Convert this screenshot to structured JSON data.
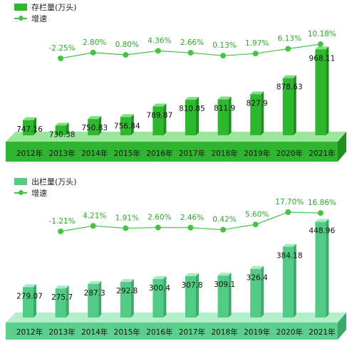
{
  "chart_data": [
    {
      "type": "bar",
      "legend": {
        "bar_label": "存栏量(万头)",
        "line_label": "增速"
      },
      "categories": [
        "2012年",
        "2013年",
        "2014年",
        "2015年",
        "2016年",
        "2017年",
        "2018年",
        "2019年",
        "2020年",
        "2021年"
      ],
      "series": [
        {
          "name": "存栏量(万头)",
          "values": [
            747.16,
            730.38,
            750.83,
            756.84,
            789.87,
            810.85,
            811.9,
            827.9,
            878.63,
            968.11
          ],
          "labels": [
            "747.16",
            "730.38",
            "750.83",
            "756.84",
            "789.87",
            "810.85",
            "811.9",
            "827.9",
            "878.63",
            "968.11"
          ]
        },
        {
          "name": "增速",
          "values": [
            null,
            -2.25,
            2.8,
            0.8,
            4.36,
            2.66,
            0.13,
            1.97,
            6.13,
            10.18
          ],
          "labels": [
            "",
            "-2.25%",
            "2.80%",
            "0.80%",
            "4.36%",
            "2.66%",
            "0.13%",
            "1.97%",
            "6.13%",
            "10.18%"
          ]
        }
      ],
      "colors": {
        "bar_front": "#2eb82e",
        "bar_side": "#1f8f1f",
        "bar_top": "#7fe07f",
        "base": "#30b530",
        "base_top": "#9be69b",
        "line": "#44c444",
        "growth_label": "#2aa82a"
      }
    },
    {
      "type": "bar",
      "legend": {
        "bar_label": "出栏量(万头)",
        "line_label": "增速"
      },
      "categories": [
        "2012年",
        "2013年",
        "2014年",
        "2015年",
        "2016年",
        "2017年",
        "2018年",
        "2019年",
        "2020年",
        "2021年"
      ],
      "series": [
        {
          "name": "出栏量(万头)",
          "values": [
            279.07,
            275.7,
            287.3,
            292.8,
            300.4,
            307.8,
            309.1,
            326.4,
            384.18,
            448.96
          ],
          "labels": [
            "279.07",
            "275.7",
            "287.3",
            "292.8",
            "300.4",
            "307.8",
            "309.1",
            "326.4",
            "384.18",
            "448.96"
          ]
        },
        {
          "name": "增速",
          "values": [
            null,
            -1.21,
            4.21,
            1.91,
            2.6,
            2.46,
            0.42,
            5.6,
            17.7,
            16.86
          ],
          "labels": [
            "",
            "-1.21%",
            "4.21%",
            "1.91%",
            "2.60%",
            "2.46%",
            "0.42%",
            "5.60%",
            "17.70%",
            "16.86%"
          ]
        }
      ],
      "colors": {
        "bar_front": "#52cc85",
        "bar_side": "#3aa96a",
        "bar_top": "#a9ecc4",
        "base": "#5ccf8c",
        "base_top": "#b4efcb",
        "line": "#44c444",
        "growth_label": "#2aa82a"
      }
    }
  ]
}
